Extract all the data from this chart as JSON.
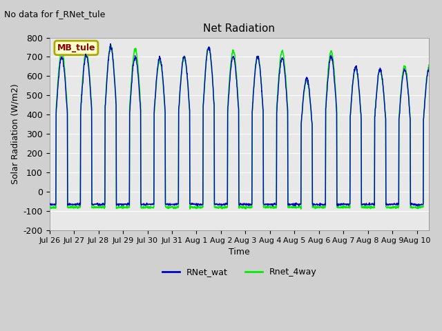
{
  "title": "Net Radiation",
  "subtitle": "No data for f_RNet_tule",
  "xlabel": "Time",
  "ylabel": "Solar Radiation (W/m2)",
  "ylim": [
    -200,
    800
  ],
  "yticks": [
    -200,
    -100,
    0,
    100,
    200,
    300,
    400,
    500,
    600,
    700,
    800
  ],
  "xtick_labels": [
    "Jul 26",
    "Jul 27",
    "Jul 28",
    "Jul 29",
    "Jul 30",
    "Jul 31",
    "Aug 1",
    "Aug 2",
    "Aug 3",
    "Aug 4",
    "Aug 5",
    "Aug 6",
    "Aug 7",
    "Aug 8",
    "Aug 9",
    "Aug 10"
  ],
  "legend_entries": [
    "RNet_wat",
    "Rnet_4way"
  ],
  "legend_colors": [
    "#0000cc",
    "#00ee00"
  ],
  "box_label": "MB_tule",
  "box_facecolor": "#ffffcc",
  "box_edgecolor": "#aaaa00",
  "box_textcolor": "#880000",
  "fig_facecolor": "#d0d0d0",
  "ax_facecolor": "#e8e8e8",
  "line_color_blue": "#0000cc",
  "line_color_green": "#00ee00",
  "n_days": 15.5,
  "points_per_day": 96,
  "day_peaks_wat": [
    700,
    705,
    750,
    700,
    695,
    700,
    750,
    700,
    700,
    695,
    590,
    700,
    650,
    635,
    635
  ],
  "day_peaks_4way": [
    730,
    730,
    760,
    740,
    680,
    700,
    750,
    730,
    700,
    730,
    580,
    730,
    645,
    635,
    655
  ],
  "night_val_wat": -65,
  "night_val_4way": -80
}
